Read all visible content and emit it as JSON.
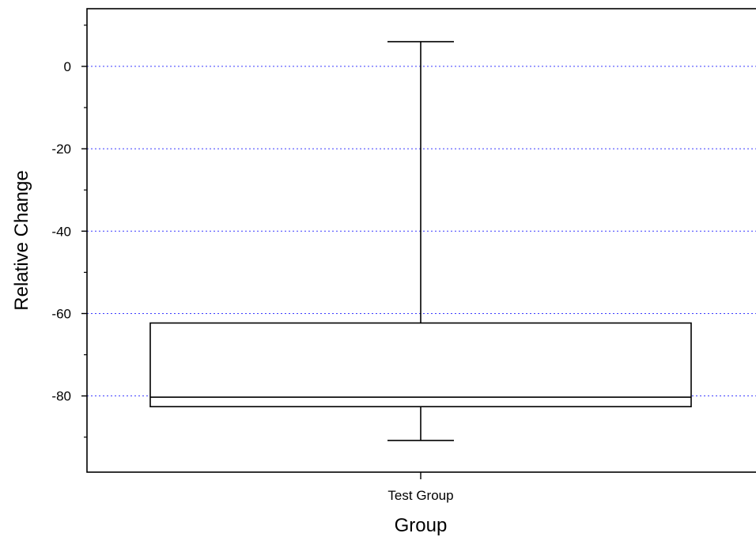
{
  "chart_data": {
    "type": "box",
    "title": "",
    "xlabel": "Group",
    "ylabel": "Relative Change",
    "categories": [
      "Test Group"
    ],
    "boxes": [
      {
        "category": "Test Group",
        "whisker_high": 6,
        "q3": -62.3,
        "median": -80.3,
        "q1": -82.6,
        "whisker_low": -90.8
      }
    ],
    "ylim": [
      -98.5,
      14
    ],
    "yticks": [
      0,
      -20,
      -40,
      -60,
      -80
    ],
    "yticks_minor": [
      10,
      -10,
      -30,
      -50,
      -70,
      -90
    ],
    "y_tick_labels": [
      "0",
      "-20",
      "-40",
      "-60",
      "-80"
    ],
    "grid": {
      "y_major": true,
      "style": "dotted",
      "color": "#3a3aff"
    },
    "colors": {
      "box_stroke": "#000000",
      "box_fill": "#ffffff"
    }
  }
}
